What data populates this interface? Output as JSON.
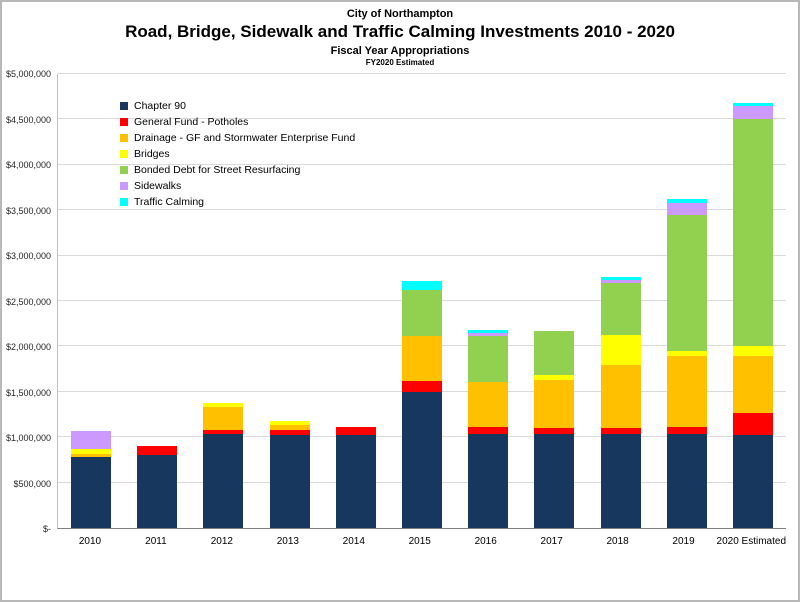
{
  "header": {
    "supertitle": "City of Northampton",
    "title": "Road, Bridge, Sidewalk and Traffic Calming Investments 2010 - 2020",
    "subtitle": "Fiscal Year Appropriations",
    "note": "FY2020 Estimated"
  },
  "chart_data": {
    "type": "bar",
    "stacked": true,
    "title": "Road, Bridge, Sidewalk and Traffic Calming Investments 2010 - 2020",
    "xlabel": "",
    "ylabel": "",
    "grid": "horizontal",
    "legend_position": "upper-left-inside",
    "ylim": [
      0,
      5000000
    ],
    "ytick_interval": 500000,
    "ytick_labels": [
      "$-",
      "$500,000",
      "$1,000,000",
      "$1,500,000",
      "$2,000,000",
      "$2,500,000",
      "$3,000,000",
      "$3,500,000",
      "$4,000,000",
      "$4,500,000",
      "$5,000,000"
    ],
    "categories": [
      "2010",
      "2011",
      "2012",
      "2013",
      "2014",
      "2015",
      "2016",
      "2017",
      "2018",
      "2019",
      "2020 Estimated"
    ],
    "series": [
      {
        "name": "Chapter 90",
        "color": "#17375E",
        "values": [
          780000,
          800000,
          1030000,
          1020000,
          1020000,
          1500000,
          1030000,
          1030000,
          1030000,
          1030000,
          1020000
        ]
      },
      {
        "name": "General Fund - Potholes",
        "color": "#FF0000",
        "values": [
          0,
          100000,
          50000,
          60000,
          90000,
          120000,
          80000,
          70000,
          70000,
          80000,
          250000
        ]
      },
      {
        "name": "Drainage - GF and  Stormwater Enterprise Fund",
        "color": "#FFC000",
        "values": [
          40000,
          0,
          250000,
          60000,
          0,
          500000,
          500000,
          530000,
          700000,
          790000,
          630000
        ]
      },
      {
        "name": "Bridges",
        "color": "#FFFF00",
        "values": [
          50000,
          0,
          50000,
          40000,
          0,
          0,
          0,
          60000,
          330000,
          50000,
          100000
        ]
      },
      {
        "name": "Bonded Debt for Street Resurfacing",
        "color": "#92D050",
        "values": [
          0,
          0,
          0,
          0,
          0,
          500000,
          500000,
          480000,
          570000,
          1500000,
          2500000
        ]
      },
      {
        "name": "Sidewalks",
        "color": "#CC99FF",
        "values": [
          200000,
          0,
          0,
          0,
          0,
          0,
          40000,
          0,
          30000,
          130000,
          150000
        ]
      },
      {
        "name": "Traffic Calming",
        "color": "#00FFFF",
        "values": [
          0,
          0,
          0,
          0,
          0,
          100000,
          30000,
          0,
          30000,
          40000,
          30000
        ]
      }
    ]
  }
}
